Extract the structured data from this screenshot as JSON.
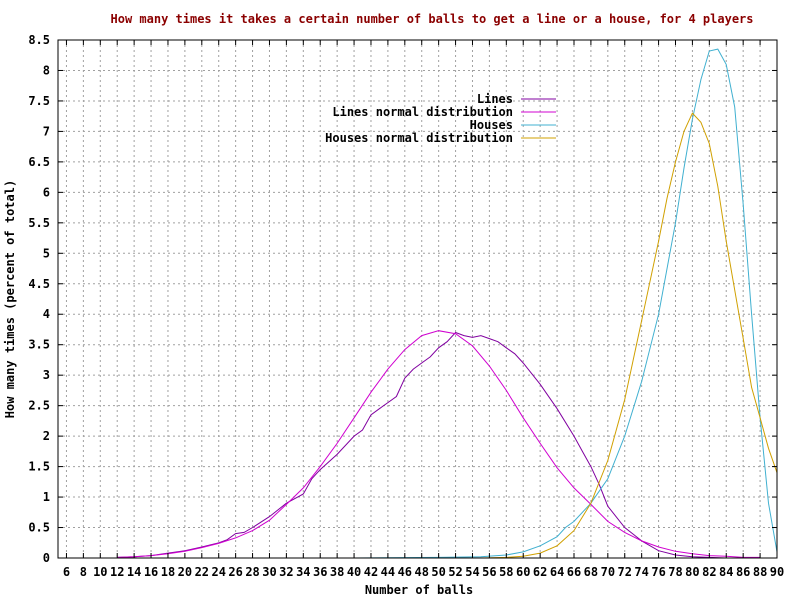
{
  "chart_data": {
    "type": "line",
    "title": "How many times it takes a certain number of balls to get a line or a house, for 4 players",
    "xlabel": "Number of balls",
    "ylabel": "How many times (percent of total)",
    "xlim": [
      5,
      90
    ],
    "ylim": [
      0,
      8.5
    ],
    "xticks": [
      6,
      8,
      10,
      12,
      14,
      16,
      18,
      20,
      22,
      24,
      26,
      28,
      30,
      32,
      34,
      36,
      38,
      40,
      42,
      44,
      46,
      48,
      50,
      52,
      54,
      56,
      58,
      60,
      62,
      64,
      66,
      68,
      70,
      72,
      74,
      76,
      78,
      80,
      82,
      84,
      86,
      88,
      90
    ],
    "yticks": [
      0,
      0.5,
      1,
      1.5,
      2,
      2.5,
      3,
      3.5,
      4,
      4.5,
      5,
      5.5,
      6,
      6.5,
      7,
      7.5,
      8,
      8.5
    ],
    "ytick_labels": [
      "0",
      "0.5",
      "1",
      "1.5",
      "2",
      "2.5",
      "3",
      "3.5",
      "4",
      "4.5",
      "5",
      "5.5",
      "6",
      "6.5",
      "7",
      "7.5",
      "8",
      "8.5"
    ],
    "grid": true,
    "legend_position": "top-center",
    "series": [
      {
        "name": "Lines",
        "color": "#8000a0",
        "x": [
          12,
          14,
          16,
          18,
          20,
          22,
          24,
          25,
          26,
          27,
          28,
          30,
          32,
          34,
          35,
          36,
          38,
          40,
          41,
          42,
          43,
          44,
          45,
          46,
          47,
          48,
          49,
          50,
          51,
          52,
          53,
          54,
          55,
          56,
          57,
          58,
          59,
          60,
          62,
          64,
          66,
          67,
          68,
          69,
          70,
          72,
          74,
          76,
          78,
          80,
          82,
          84,
          86,
          88
        ],
        "y": [
          0.01,
          0.02,
          0.04,
          0.08,
          0.12,
          0.18,
          0.25,
          0.3,
          0.4,
          0.42,
          0.5,
          0.68,
          0.9,
          1.05,
          1.3,
          1.45,
          1.7,
          2.0,
          2.1,
          2.35,
          2.45,
          2.55,
          2.65,
          2.95,
          3.1,
          3.2,
          3.3,
          3.45,
          3.55,
          3.7,
          3.65,
          3.62,
          3.65,
          3.6,
          3.55,
          3.45,
          3.35,
          3.2,
          2.85,
          2.45,
          2.0,
          1.75,
          1.5,
          1.2,
          0.85,
          0.5,
          0.28,
          0.12,
          0.05,
          0.02,
          0.01,
          0.0,
          0.0,
          0.0
        ]
      },
      {
        "name": "Lines normal distribution",
        "color": "#d000d0",
        "x": [
          12,
          14,
          16,
          18,
          20,
          22,
          24,
          26,
          28,
          30,
          32,
          34,
          36,
          38,
          40,
          42,
          44,
          46,
          48,
          50,
          52,
          54,
          56,
          58,
          60,
          62,
          64,
          66,
          68,
          70,
          72,
          74,
          76,
          78,
          80,
          82,
          84,
          86,
          88
        ],
        "y": [
          0.01,
          0.02,
          0.04,
          0.07,
          0.11,
          0.17,
          0.24,
          0.33,
          0.45,
          0.62,
          0.88,
          1.15,
          1.5,
          1.88,
          2.3,
          2.72,
          3.1,
          3.42,
          3.65,
          3.73,
          3.68,
          3.48,
          3.15,
          2.75,
          2.3,
          1.88,
          1.48,
          1.15,
          0.88,
          0.6,
          0.42,
          0.28,
          0.18,
          0.11,
          0.07,
          0.04,
          0.03,
          0.01,
          0.01
        ]
      },
      {
        "name": "Houses",
        "color": "#40b0d0",
        "x": [
          40,
          50,
          55,
          58,
          60,
          62,
          64,
          65,
          66,
          68,
          70,
          72,
          74,
          76,
          78,
          79,
          80,
          81,
          82,
          83,
          84,
          85,
          86,
          87,
          88,
          89,
          90
        ],
        "y": [
          0.0,
          0.01,
          0.02,
          0.05,
          0.1,
          0.2,
          0.35,
          0.5,
          0.6,
          0.9,
          1.3,
          2.0,
          2.9,
          4.0,
          5.5,
          6.4,
          7.2,
          7.85,
          8.32,
          8.35,
          8.1,
          7.4,
          5.8,
          4.0,
          2.3,
          0.9,
          0.1
        ]
      },
      {
        "name": "Houses normal distribution",
        "color": "#d0a000",
        "x": [
          55,
          58,
          60,
          62,
          64,
          66,
          68,
          70,
          72,
          74,
          76,
          77,
          78,
          79,
          80,
          81,
          82,
          83,
          84,
          85,
          86,
          87,
          88,
          89,
          90
        ],
        "y": [
          0.0,
          0.01,
          0.03,
          0.08,
          0.2,
          0.45,
          0.9,
          1.6,
          2.6,
          3.9,
          5.2,
          5.9,
          6.5,
          7.0,
          7.3,
          7.15,
          6.8,
          6.1,
          5.2,
          4.4,
          3.6,
          2.8,
          2.3,
          1.8,
          1.4
        ]
      }
    ]
  }
}
